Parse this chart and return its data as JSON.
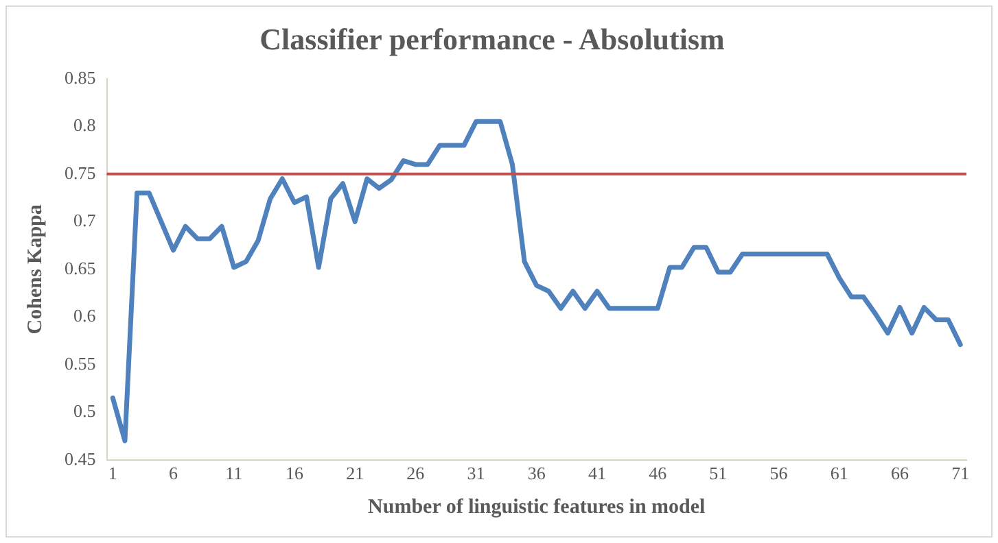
{
  "chart_data": {
    "type": "line",
    "title": "Classifier performance - Absolutism",
    "xlabel": "Number of linguistic features in model",
    "ylabel": "Cohens Kappa",
    "x": [
      1,
      2,
      3,
      4,
      5,
      6,
      7,
      8,
      9,
      10,
      11,
      12,
      13,
      14,
      15,
      16,
      17,
      18,
      19,
      20,
      21,
      22,
      23,
      24,
      25,
      26,
      27,
      28,
      29,
      30,
      31,
      32,
      33,
      34,
      35,
      36,
      37,
      38,
      39,
      40,
      41,
      42,
      43,
      44,
      45,
      46,
      47,
      48,
      49,
      50,
      51,
      52,
      53,
      54,
      55,
      56,
      57,
      58,
      59,
      60,
      61,
      62,
      63,
      64,
      65,
      66,
      67,
      68,
      69,
      70,
      71
    ],
    "series": [
      {
        "color": "#4f81bd",
        "values": [
          0.515,
          0.47,
          0.73,
          0.73,
          0.7,
          0.67,
          0.695,
          0.682,
          0.682,
          0.695,
          0.652,
          0.658,
          0.68,
          0.724,
          0.745,
          0.72,
          0.726,
          0.652,
          0.724,
          0.74,
          0.7,
          0.745,
          0.735,
          0.744,
          0.764,
          0.76,
          0.76,
          0.78,
          0.78,
          0.78,
          0.805,
          0.805,
          0.805,
          0.76,
          0.658,
          0.633,
          0.627,
          0.609,
          0.627,
          0.609,
          0.627,
          0.609,
          0.609,
          0.609,
          0.609,
          0.609,
          0.652,
          0.652,
          0.673,
          0.673,
          0.647,
          0.647,
          0.666,
          0.666,
          0.666,
          0.666,
          0.666,
          0.666,
          0.666,
          0.666,
          0.641,
          0.621,
          0.621,
          0.603,
          0.583,
          0.61,
          0.583,
          0.61,
          0.597,
          0.597,
          0.571
        ]
      }
    ],
    "ref_lines": [
      {
        "axis": "y",
        "value": 0.75,
        "color": "#c0504d"
      }
    ],
    "xlim": [
      0.5,
      71.5
    ],
    "xticks": [
      1,
      6,
      11,
      16,
      21,
      26,
      31,
      36,
      41,
      46,
      51,
      56,
      61,
      66,
      71
    ],
    "ylim": [
      0.45,
      0.85
    ],
    "yticks": [
      0.45,
      0.5,
      0.55,
      0.6,
      0.65,
      0.7,
      0.75,
      0.8,
      0.85
    ],
    "grid": false,
    "legend": false,
    "marker": "none",
    "line_style": "solid"
  }
}
